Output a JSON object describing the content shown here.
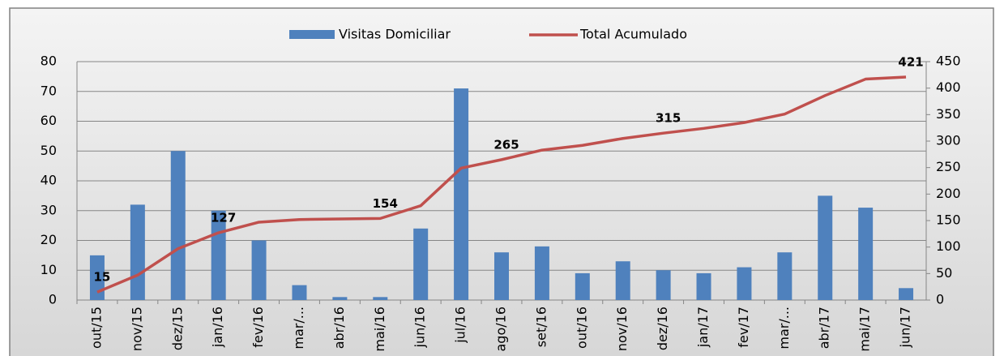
{
  "chart_data": {
    "type": "bar_line",
    "categories": [
      "out/15",
      "nov/15",
      "dez/15",
      "jan/16",
      "fev/16",
      "mar/...",
      "abr/16",
      "mai/16",
      "jun/16",
      "jul/16",
      "ago/16",
      "set/16",
      "out/16",
      "nov/16",
      "dez/16",
      "jan/17",
      "fev/17",
      "mar/...",
      "abr/17",
      "mai/17",
      "jun/17"
    ],
    "series": [
      {
        "name": "Visitas Domiciliar",
        "type": "bar",
        "color": "#4f81bd",
        "values": [
          15,
          32,
          50,
          30,
          20,
          5,
          1,
          1,
          24,
          71,
          16,
          18,
          9,
          13,
          10,
          9,
          11,
          16,
          35,
          31,
          4
        ]
      },
      {
        "name": "Total Acumulado",
        "type": "line",
        "axis": "y2",
        "color": "#c0504d",
        "values": [
          15,
          47,
          97,
          127,
          147,
          152,
          153,
          154,
          178,
          249,
          265,
          283,
          292,
          305,
          315,
          324,
          335,
          351,
          386,
          417,
          421
        ],
        "value_labels": [
          "15",
          null,
          null,
          "127",
          null,
          null,
          null,
          "154",
          null,
          null,
          "265",
          null,
          null,
          null,
          "315",
          null,
          null,
          null,
          null,
          null,
          "421"
        ]
      }
    ],
    "ylim": [
      0,
      80
    ],
    "yticks": [
      0,
      10,
      20,
      30,
      40,
      50,
      60,
      70,
      80
    ],
    "y2lim": [
      0,
      450
    ],
    "y2ticks": [
      0,
      50,
      100,
      150,
      200,
      250,
      300,
      350,
      400,
      450
    ],
    "grid": true,
    "legend": "top"
  }
}
